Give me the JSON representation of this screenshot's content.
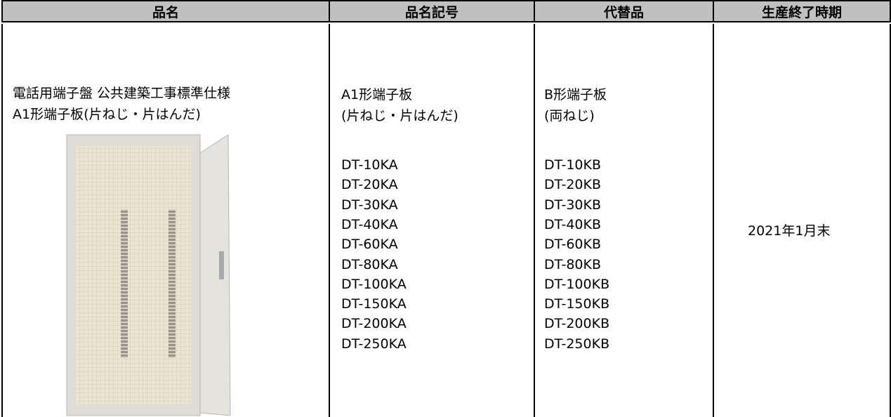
{
  "table": {
    "header": [
      "品名",
      "品名記号",
      "代替品",
      "生産終了時期"
    ],
    "rows": [
      {
        "name_lines": [
          "電話用端子盤 公共建築工事標準仕様",
          "A1形端子板(片ねじ・片はんだ)"
        ],
        "symbol_lines": [
          "A1形端子板",
          "(片ねじ・片はんだ)"
        ],
        "symbol_models": [
          "DT-10KA",
          "DT-20KA",
          "DT-30KA",
          "DT-40KA",
          "DT-60KA",
          "DT-80KA",
          "DT-100KA",
          "DT-150KA",
          "DT-200KA",
          "DT-250KA"
        ],
        "replacement_lines": [
          "B形端子板",
          "(両ねじ)"
        ],
        "replacement_models": [
          "DT-10KB",
          "DT-20KB",
          "DT-30KB",
          "DT-40KB",
          "DT-60KB",
          "DT-80KB",
          "DT-100KB",
          "DT-150KB",
          "DT-200KB",
          "DT-250KB"
        ],
        "end_date": "2021年1月末"
      }
    ]
  }
}
